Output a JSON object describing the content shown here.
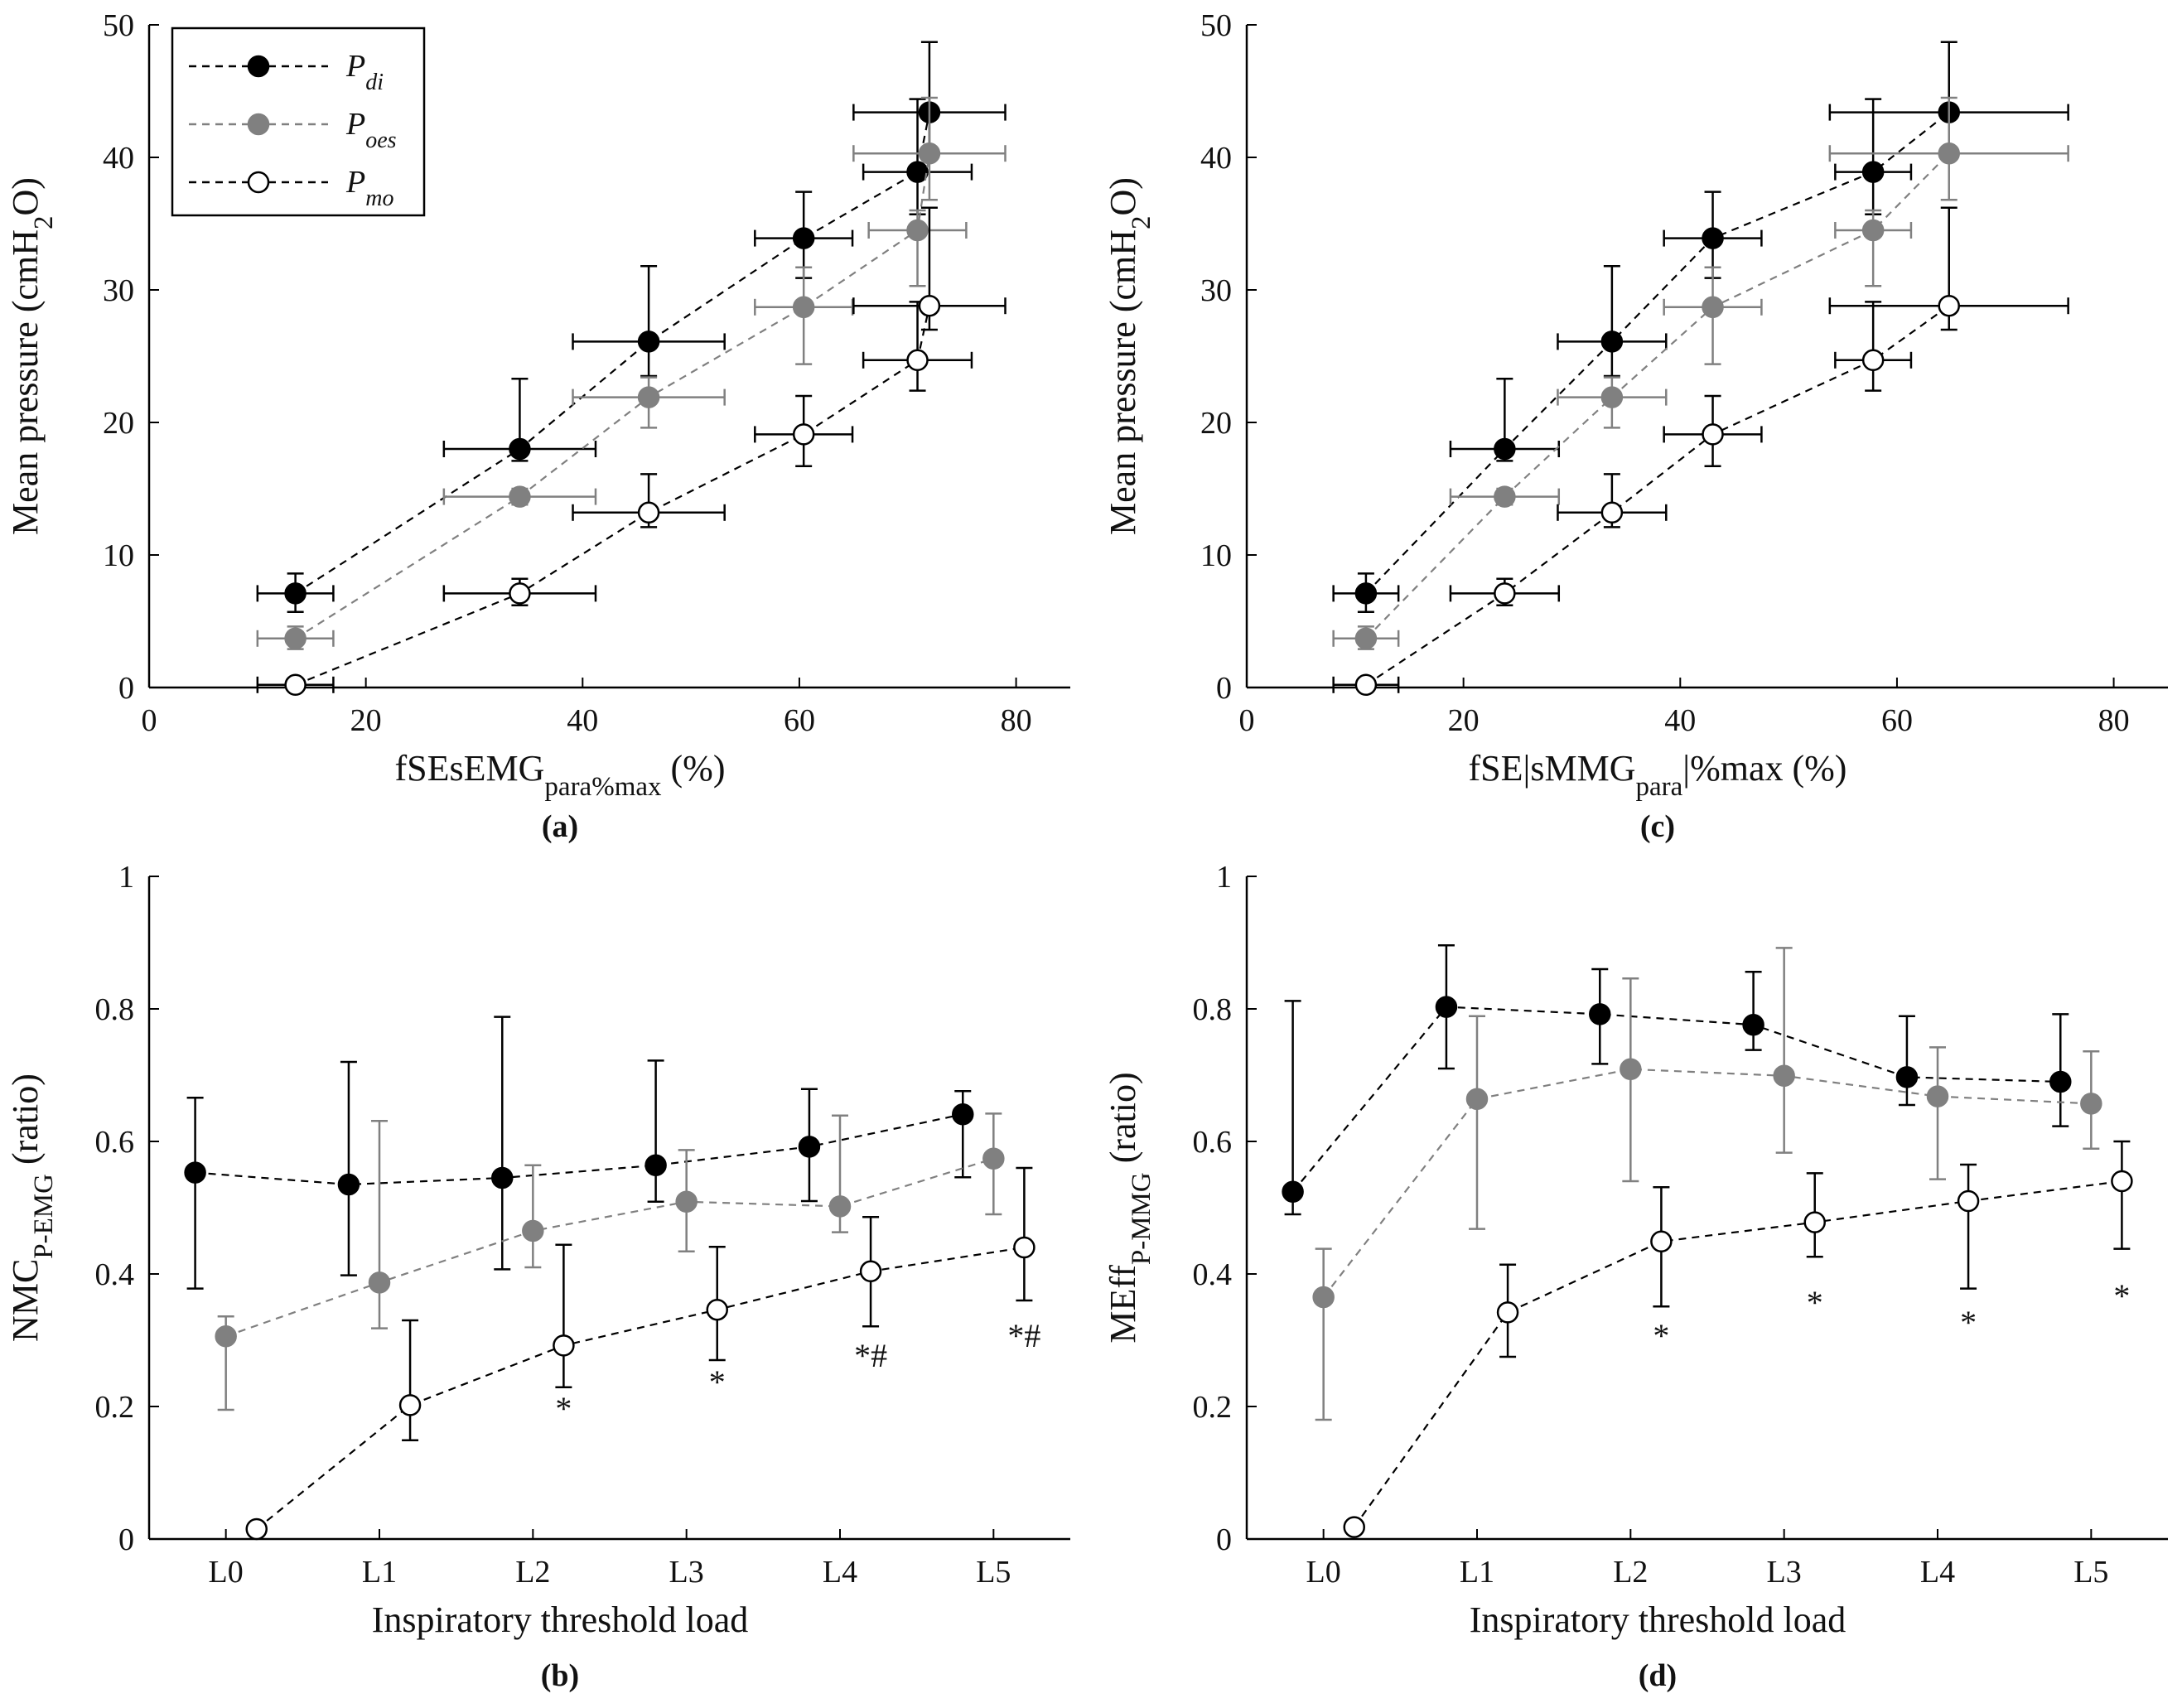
{
  "colors": {
    "pdi": "#000000",
    "poes": "#808080",
    "pmo": "#000000",
    "axis": "#000000",
    "open_fill": "#ffffff"
  },
  "legend": {
    "entries": [
      {
        "key": "pdi",
        "base": "P",
        "sub": "di",
        "marker": "filled-black",
        "line": "dashed-black"
      },
      {
        "key": "poes",
        "base": "P",
        "sub": "oes",
        "marker": "filled-gray",
        "line": "dashed-gray"
      },
      {
        "key": "pmo",
        "base": "P",
        "sub": "mo",
        "marker": "open",
        "line": "dashed-black"
      }
    ]
  },
  "chart_data": [
    {
      "id": "a",
      "type": "scatter",
      "caption": "(a)",
      "xlabel": {
        "base": "fSEsEMG",
        "sub": "para%max",
        "tail": " (%)"
      },
      "ylabel": {
        "base": "Mean pressure (cmH",
        "sub": "2",
        "tail": "O)"
      },
      "xlim": [
        0,
        85
      ],
      "ylim": [
        0,
        50
      ],
      "xticks": [
        0,
        20,
        40,
        60,
        80
      ],
      "yticks": [
        0,
        10,
        20,
        30,
        40,
        50
      ],
      "grid": false,
      "series": [
        {
          "key": "pdi",
          "name": "P_di",
          "x": [
            13.5,
            34.2,
            46.1,
            60.4,
            70.9,
            72.0
          ],
          "y": [
            7.1,
            18.0,
            26.1,
            33.9,
            38.9,
            43.4
          ],
          "xerr": [
            3.5,
            7.0,
            7.0,
            4.5,
            5.0,
            7.0
          ],
          "yerr_low": [
            1.4,
            0.9,
            2.6,
            3.0,
            3.2,
            3.4
          ],
          "yerr_high": [
            1.5,
            5.3,
            5.7,
            3.5,
            5.5,
            5.3
          ]
        },
        {
          "key": "poes",
          "name": "P_oes",
          "x": [
            13.5,
            34.2,
            46.1,
            60.4,
            70.9,
            72.0
          ],
          "y": [
            3.7,
            14.4,
            21.9,
            28.7,
            34.5,
            40.3
          ],
          "xerr": [
            3.5,
            7.0,
            7.0,
            4.5,
            4.5,
            7.0
          ],
          "yerr_low": [
            0.8,
            0.6,
            2.3,
            4.3,
            4.2,
            3.5
          ],
          "yerr_high": [
            0.9,
            0.6,
            1.5,
            3.0,
            1.5,
            4.2
          ]
        },
        {
          "key": "pmo",
          "name": "P_mo",
          "x": [
            13.5,
            34.2,
            46.1,
            60.4,
            70.9,
            72.0
          ],
          "y": [
            0.2,
            7.1,
            13.2,
            19.1,
            24.7,
            28.8
          ],
          "xerr": [
            3.5,
            7.0,
            7.0,
            4.5,
            5.0,
            7.0
          ],
          "yerr_low": [
            0.2,
            0.9,
            1.1,
            2.4,
            2.3,
            1.8
          ],
          "yerr_high": [
            0.2,
            1.1,
            2.9,
            2.9,
            4.4,
            7.4
          ]
        }
      ]
    },
    {
      "id": "c",
      "type": "scatter",
      "caption": "(c)",
      "xlabel": {
        "base": "fSE|sMMG",
        "sub": "para",
        "tail": "|%max (%)"
      },
      "ylabel": {
        "base": "Mean pressure (cmH",
        "sub": "2",
        "tail": "O)"
      },
      "xlim": [
        0,
        85
      ],
      "ylim": [
        0,
        50
      ],
      "xticks": [
        0,
        20,
        40,
        60,
        80
      ],
      "yticks": [
        0,
        10,
        20,
        30,
        40,
        50
      ],
      "grid": false,
      "series": [
        {
          "key": "pdi",
          "name": "P_di",
          "x": [
            11.0,
            23.8,
            33.7,
            43.0,
            57.8,
            64.8
          ],
          "y": [
            7.1,
            18.0,
            26.1,
            33.9,
            38.9,
            43.4
          ],
          "xerr": [
            3.0,
            5.0,
            5.0,
            4.5,
            3.5,
            11.0
          ],
          "yerr_low": [
            1.4,
            0.9,
            2.6,
            3.0,
            3.2,
            3.4
          ],
          "yerr_high": [
            1.5,
            5.3,
            5.7,
            3.5,
            5.5,
            5.3
          ]
        },
        {
          "key": "poes",
          "name": "P_oes",
          "x": [
            11.0,
            23.8,
            33.7,
            43.0,
            57.8,
            64.8
          ],
          "y": [
            3.7,
            14.4,
            21.9,
            28.7,
            34.5,
            40.3
          ],
          "xerr": [
            3.0,
            5.0,
            5.0,
            4.5,
            3.5,
            11.0
          ],
          "yerr_low": [
            0.8,
            0.6,
            2.3,
            4.3,
            4.2,
            3.5
          ],
          "yerr_high": [
            0.9,
            0.6,
            1.5,
            3.0,
            1.5,
            4.2
          ]
        },
        {
          "key": "pmo",
          "name": "P_mo",
          "x": [
            11.0,
            23.8,
            33.7,
            43.0,
            57.8,
            64.8
          ],
          "y": [
            0.2,
            7.1,
            13.2,
            19.1,
            24.7,
            28.8
          ],
          "xerr": [
            3.0,
            5.0,
            5.0,
            4.5,
            3.5,
            11.0
          ],
          "yerr_low": [
            0.2,
            0.9,
            1.1,
            2.4,
            2.3,
            1.8
          ],
          "yerr_high": [
            0.2,
            1.1,
            2.9,
            2.9,
            4.4,
            7.4
          ]
        }
      ]
    },
    {
      "id": "b",
      "type": "line",
      "caption": "(b)",
      "xlabel": {
        "base": "Inspiratory threshold load",
        "sub": "",
        "tail": ""
      },
      "ylabel": {
        "base": "NMC",
        "sub": "P-EMG",
        "tail": " (ratio)"
      },
      "categories": [
        "L0",
        "L1",
        "L2",
        "L3",
        "L4",
        "L5"
      ],
      "xlim": [
        -0.5,
        5.5
      ],
      "ylim": [
        0,
        1
      ],
      "yticks": [
        0,
        0.2,
        0.4,
        0.6,
        0.8,
        1
      ],
      "grid": false,
      "series": [
        {
          "key": "pdi",
          "name": "P_di",
          "x": [
            -0.2,
            0.8,
            1.8,
            2.8,
            3.8,
            4.8
          ],
          "y": [
            0.553,
            0.535,
            0.545,
            0.564,
            0.592,
            0.641
          ],
          "err_low": [
            0.175,
            0.137,
            0.138,
            0.055,
            0.082,
            0.095
          ],
          "err_high": [
            0.113,
            0.185,
            0.243,
            0.158,
            0.087,
            0.035
          ]
        },
        {
          "key": "poes",
          "name": "P_oes",
          "x": [
            0.0,
            1.0,
            2.0,
            3.0,
            4.0,
            5.0
          ],
          "y": [
            0.306,
            0.387,
            0.465,
            0.509,
            0.502,
            0.574
          ],
          "err_low": [
            0.111,
            0.069,
            0.055,
            0.075,
            0.039,
            0.084
          ],
          "err_high": [
            0.03,
            0.244,
            0.099,
            0.078,
            0.137,
            0.068
          ]
        },
        {
          "key": "pmo",
          "name": "P_mo",
          "x": [
            0.2,
            1.2,
            2.2,
            3.2,
            4.2,
            5.2
          ],
          "y": [
            0.015,
            0.202,
            0.292,
            0.346,
            0.404,
            0.44
          ],
          "err_low": [
            0.005,
            0.053,
            0.063,
            0.076,
            0.083,
            0.08
          ],
          "err_high": [
            0.005,
            0.128,
            0.152,
            0.095,
            0.082,
            0.12
          ]
        }
      ],
      "annotations": [
        {
          "x": 2.2,
          "y": 0.18,
          "text": "*"
        },
        {
          "x": 3.2,
          "y": 0.22,
          "text": "*"
        },
        {
          "x": 4.2,
          "y": 0.26,
          "text": "*#"
        },
        {
          "x": 5.2,
          "y": 0.29,
          "text": "*#"
        }
      ]
    },
    {
      "id": "d",
      "type": "line",
      "caption": "(d)",
      "xlabel": {
        "base": "Inspiratory threshold load",
        "sub": "",
        "tail": ""
      },
      "ylabel": {
        "base": "MEff",
        "sub": "P-MMG",
        "tail": " (ratio)"
      },
      "categories": [
        "L0",
        "L1",
        "L2",
        "L3",
        "L4",
        "L5"
      ],
      "xlim": [
        -0.5,
        5.5
      ],
      "ylim": [
        0,
        1
      ],
      "yticks": [
        0,
        0.2,
        0.4,
        0.6,
        0.8,
        1
      ],
      "grid": false,
      "series": [
        {
          "key": "pdi",
          "name": "P_di",
          "x": [
            -0.2,
            0.8,
            1.8,
            2.8,
            3.8,
            4.8
          ],
          "y": [
            0.524,
            0.803,
            0.792,
            0.776,
            0.697,
            0.69
          ],
          "err_low": [
            0.034,
            0.093,
            0.075,
            0.038,
            0.042,
            0.067
          ],
          "err_high": [
            0.288,
            0.093,
            0.068,
            0.08,
            0.092,
            0.102
          ]
        },
        {
          "key": "poes",
          "name": "P_oes",
          "x": [
            0.0,
            1.0,
            2.0,
            3.0,
            4.0,
            5.0
          ],
          "y": [
            0.365,
            0.664,
            0.709,
            0.699,
            0.668,
            0.657
          ],
          "err_low": [
            0.185,
            0.196,
            0.169,
            0.116,
            0.125,
            0.068
          ],
          "err_high": [
            0.073,
            0.125,
            0.137,
            0.193,
            0.074,
            0.079
          ]
        },
        {
          "key": "pmo",
          "name": "P_mo",
          "x": [
            0.2,
            1.2,
            2.2,
            3.2,
            4.2,
            5.2
          ],
          "y": [
            0.018,
            0.342,
            0.449,
            0.478,
            0.51,
            0.54
          ],
          "err_low": [
            0.005,
            0.067,
            0.098,
            0.052,
            0.132,
            0.102
          ],
          "err_high": [
            0.005,
            0.072,
            0.082,
            0.074,
            0.055,
            0.06
          ]
        }
      ],
      "annotations": [
        {
          "x": 2.2,
          "y": 0.29,
          "text": "*"
        },
        {
          "x": 3.2,
          "y": 0.34,
          "text": "*"
        },
        {
          "x": 4.2,
          "y": 0.31,
          "text": "*"
        },
        {
          "x": 5.2,
          "y": 0.35,
          "text": "*"
        }
      ]
    }
  ]
}
